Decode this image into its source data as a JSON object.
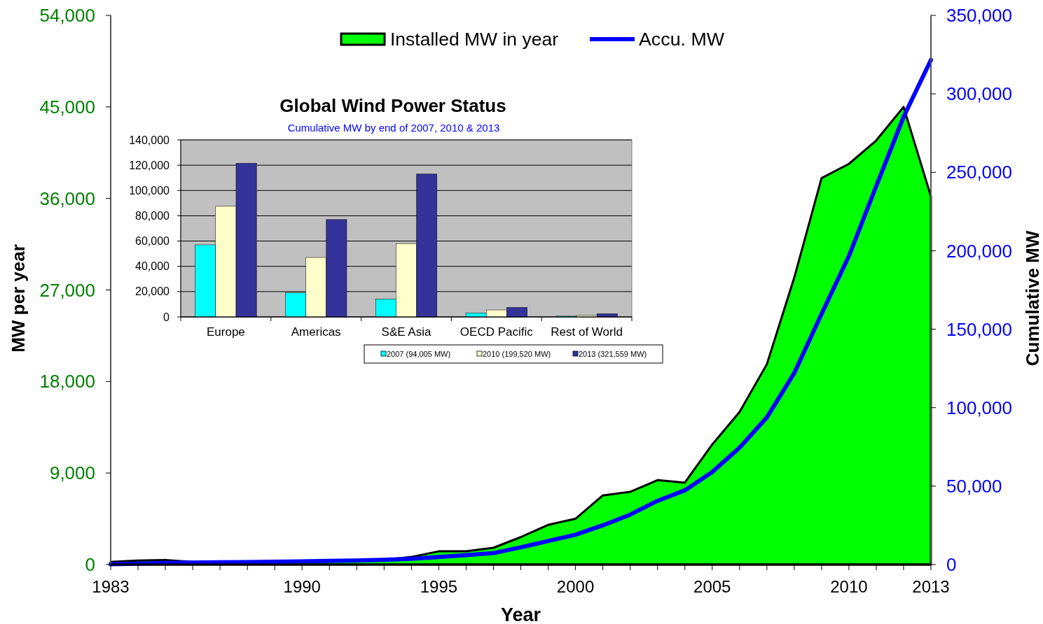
{
  "chart_data": [
    {
      "type": "area",
      "xlabel": "Year",
      "ylabel": "MW per year",
      "y2label": "Cumulative MW",
      "legend": "top",
      "x": [
        1983,
        1984,
        1985,
        1986,
        1987,
        1988,
        1989,
        1990,
        1991,
        1992,
        1993,
        1994,
        1995,
        1996,
        1997,
        1998,
        1999,
        2000,
        2001,
        2002,
        2003,
        2004,
        2005,
        2006,
        2007,
        2008,
        2009,
        2010,
        2011,
        2012,
        2013
      ],
      "series": [
        {
          "name": "Installed MW in year",
          "type": "area",
          "color": "#00ff00",
          "values": [
            250,
            400,
            450,
            250,
            250,
            300,
            300,
            350,
            400,
            400,
            450,
            750,
            1300,
            1300,
            1650,
            2700,
            3900,
            4500,
            6800,
            7150,
            8300,
            8050,
            11800,
            15000,
            19700,
            28200,
            38000,
            39400,
            41700,
            45000,
            36200
          ]
        },
        {
          "name": "Accu. MW",
          "type": "line",
          "axis": "y2",
          "color": "#0000ff",
          "values": [
            200,
            600,
            1000,
            1200,
            1400,
            1600,
            1800,
            2000,
            2300,
            2600,
            3000,
            3700,
            4800,
            6000,
            7300,
            11000,
            15000,
            19000,
            25000,
            31800,
            40600,
            47300,
            59000,
            74500,
            93800,
            122000,
            159700,
            196600,
            241200,
            285300,
            321600
          ]
        }
      ],
      "xlim": [
        1983,
        2013
      ],
      "xticks": [
        1983,
        {
          "value": 1984,
          "label": null
        },
        {
          "value": 1985,
          "label": null
        },
        {
          "value": 1986,
          "label": null
        },
        {
          "value": 1987,
          "label": null
        },
        {
          "value": 1988,
          "label": null
        },
        {
          "value": 1989,
          "label": null
        },
        1990,
        {
          "value": 1991,
          "label": null
        },
        {
          "value": 1992,
          "label": null
        },
        {
          "value": 1993,
          "label": null
        },
        {
          "value": 1994,
          "label": null
        },
        1995,
        {
          "value": 1996,
          "label": null
        },
        {
          "value": 1997,
          "label": null
        },
        {
          "value": 1998,
          "label": null
        },
        {
          "value": 1999,
          "label": null
        },
        2000,
        {
          "value": 2001,
          "label": null
        },
        {
          "value": 2002,
          "label": null
        },
        {
          "value": 2003,
          "label": null
        },
        {
          "value": 2004,
          "label": null
        },
        2005,
        {
          "value": 2006,
          "label": null
        },
        {
          "value": 2007,
          "label": null
        },
        {
          "value": 2008,
          "label": null
        },
        {
          "value": 2009,
          "label": null
        },
        2010,
        {
          "value": 2011,
          "label": null
        },
        {
          "value": 2012,
          "label": null
        },
        2013
      ],
      "ylim": [
        0,
        54000
      ],
      "yticks": [
        0,
        {
          "value": 9000,
          "label": "9,000"
        },
        {
          "value": 18000,
          "label": "18,000"
        },
        {
          "value": 27000,
          "label": "27,000"
        },
        {
          "value": 36000,
          "label": "36,000"
        },
        {
          "value": 45000,
          "label": "45,000"
        },
        {
          "value": 54000,
          "label": "54,000"
        }
      ],
      "y2lim": [
        0,
        350000
      ],
      "y2ticks": [
        0,
        {
          "value": 50000,
          "label": "50,000"
        },
        {
          "value": 100000,
          "label": "100,000"
        },
        {
          "value": 150000,
          "label": "150,000"
        },
        {
          "value": 200000,
          "label": "200,000"
        },
        {
          "value": 250000,
          "label": "250,000"
        },
        {
          "value": 300000,
          "label": "300,000"
        },
        {
          "value": 350000,
          "label": "350,000"
        }
      ]
    },
    {
      "type": "bar",
      "title": "Global Wind Power Status",
      "subtitle": "Cumulative MW by end of 2007, 2010 & 2013",
      "legend": "bottom right",
      "grid": "y",
      "categories": [
        "Europe",
        "Americas",
        "S&E Asia",
        "OECD Pacific",
        "Rest of World"
      ],
      "series": [
        {
          "name": "2007 (94,005 MW)",
          "color": "#00ffff",
          "values": [
            57000,
            19000,
            14000,
            3000,
            600
          ]
        },
        {
          "name": "2010 (199,520 MW)",
          "color": "#ffffcc",
          "values": [
            87500,
            47000,
            58000,
            5500,
            1200
          ]
        },
        {
          "name": "2013 (321,559 MW)",
          "color": "#333399",
          "values": [
            121500,
            77000,
            113000,
            7500,
            2500
          ]
        }
      ],
      "ylim": [
        0,
        140000
      ],
      "yticks": [
        0,
        {
          "value": 20000,
          "label": "20,000"
        },
        {
          "value": 40000,
          "label": "40,000"
        },
        {
          "value": 60000,
          "label": "60,000"
        },
        {
          "value": 80000,
          "label": "80,000"
        },
        {
          "value": 100000,
          "label": "100,000"
        },
        {
          "value": 120000,
          "label": "120,000"
        },
        {
          "value": 140000,
          "label": "140,000"
        }
      ]
    }
  ]
}
